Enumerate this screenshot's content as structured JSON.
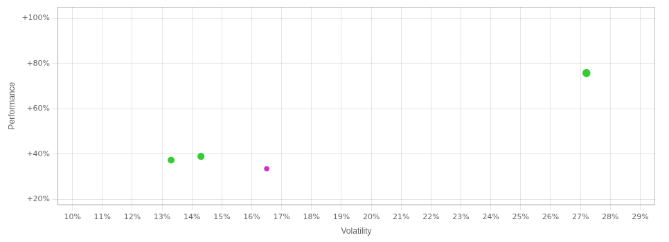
{
  "chart_data": {
    "type": "scatter",
    "xlabel": "Volatility",
    "ylabel": "Performance",
    "x": [
      0.133,
      0.143,
      0.165,
      0.272
    ],
    "values": [
      0.373,
      0.39,
      0.335,
      0.758
    ],
    "colors": [
      "#33cc33",
      "#33cc33",
      "#cc33cc",
      "#33cc33"
    ],
    "sizes": [
      50,
      55,
      30,
      70
    ],
    "xlim": [
      0.095,
      0.295
    ],
    "ylim": [
      0.175,
      1.05
    ],
    "xticks": [
      {
        "value": 0.1,
        "label": "10%"
      },
      {
        "value": 0.11,
        "label": "11%"
      },
      {
        "value": 0.12,
        "label": "12%"
      },
      {
        "value": 0.13,
        "label": "13%"
      },
      {
        "value": 0.14,
        "label": "14%"
      },
      {
        "value": 0.15,
        "label": "15%"
      },
      {
        "value": 0.16,
        "label": "16%"
      },
      {
        "value": 0.17,
        "label": "17%"
      },
      {
        "value": 0.18,
        "label": "18%"
      },
      {
        "value": 0.19,
        "label": "19%"
      },
      {
        "value": 0.2,
        "label": "20%"
      },
      {
        "value": 0.21,
        "label": "21%"
      },
      {
        "value": 0.22,
        "label": "22%"
      },
      {
        "value": 0.23,
        "label": "23%"
      },
      {
        "value": 0.24,
        "label": "24%"
      },
      {
        "value": 0.25,
        "label": "25%"
      },
      {
        "value": 0.26,
        "label": "26%"
      },
      {
        "value": 0.27,
        "label": "27%"
      },
      {
        "value": 0.28,
        "label": "28%"
      },
      {
        "value": 0.29,
        "label": "29%"
      }
    ],
    "yticks": [
      {
        "value": 0.2,
        "label": "+20%"
      },
      {
        "value": 0.4,
        "label": "+40%"
      },
      {
        "value": 0.6,
        "label": "+60%"
      },
      {
        "value": 0.8,
        "label": "+80%"
      },
      {
        "value": 1.0,
        "label": "+100%"
      }
    ],
    "grid": true
  }
}
